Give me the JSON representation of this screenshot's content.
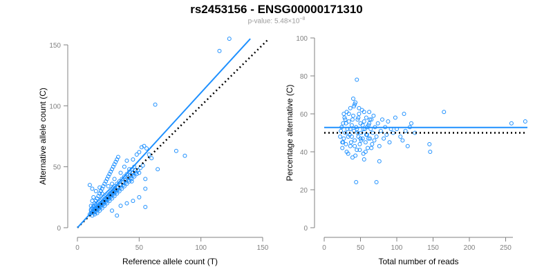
{
  "title": "rs2453156 - ENSG00000171310",
  "subtitle": {
    "prefix": "p-value: 5.48×10",
    "exponent": "−8"
  },
  "colors": {
    "points": "#1e90ff",
    "fit": "#1e90ff",
    "reference": "#000000",
    "axis": "#808080",
    "title": "#000000",
    "subtitle": "#9a9a9a"
  },
  "chart_data": [
    {
      "type": "scatter",
      "title": "",
      "xlabel": "Reference allele count (T)",
      "ylabel": "Alternative allele count (C)",
      "xlim": [
        0,
        150
      ],
      "ylim": [
        0,
        150
      ],
      "xticks": [
        0,
        50,
        100,
        150
      ],
      "yticks": [
        0,
        50,
        100,
        150
      ],
      "grid": false,
      "fit_line": {
        "x": [
          0,
          140
        ],
        "y": [
          0,
          155
        ]
      },
      "reference_line": {
        "x": [
          0,
          155
        ],
        "y": [
          0,
          155
        ]
      },
      "points": [
        [
          12,
          10
        ],
        [
          13,
          12
        ],
        [
          14,
          11
        ],
        [
          11,
          14
        ],
        [
          15,
          15
        ],
        [
          12,
          16
        ],
        [
          16,
          12
        ],
        [
          13,
          18
        ],
        [
          17,
          17
        ],
        [
          14,
          20
        ],
        [
          18,
          14
        ],
        [
          19,
          19
        ],
        [
          20,
          16
        ],
        [
          15,
          22
        ],
        [
          21,
          21
        ],
        [
          22,
          18
        ],
        [
          16,
          24
        ],
        [
          23,
          23
        ],
        [
          24,
          20
        ],
        [
          17,
          26
        ],
        [
          25,
          25
        ],
        [
          26,
          22
        ],
        [
          18,
          28
        ],
        [
          27,
          27
        ],
        [
          28,
          24
        ],
        [
          19,
          30
        ],
        [
          29,
          29
        ],
        [
          30,
          26
        ],
        [
          20,
          32
        ],
        [
          31,
          31
        ],
        [
          32,
          28
        ],
        [
          21,
          34
        ],
        [
          33,
          33
        ],
        [
          34,
          30
        ],
        [
          22,
          36
        ],
        [
          35,
          35
        ],
        [
          23,
          38
        ],
        [
          36,
          32
        ],
        [
          37,
          37
        ],
        [
          24,
          40
        ],
        [
          38,
          34
        ],
        [
          25,
          42
        ],
        [
          39,
          39
        ],
        [
          40,
          36
        ],
        [
          26,
          44
        ],
        [
          41,
          41
        ],
        [
          27,
          46
        ],
        [
          42,
          38
        ],
        [
          43,
          43
        ],
        [
          28,
          48
        ],
        [
          44,
          40
        ],
        [
          29,
          50
        ],
        [
          45,
          45
        ],
        [
          30,
          52
        ],
        [
          46,
          42
        ],
        [
          31,
          54
        ],
        [
          47,
          47
        ],
        [
          32,
          56
        ],
        [
          48,
          44
        ],
        [
          33,
          58
        ],
        [
          11,
          18
        ],
        [
          12,
          22
        ],
        [
          13,
          25
        ],
        [
          14,
          16
        ],
        [
          16,
          20
        ],
        [
          18,
          22
        ],
        [
          20,
          24
        ],
        [
          22,
          26
        ],
        [
          24,
          28
        ],
        [
          26,
          30
        ],
        [
          28,
          32
        ],
        [
          30,
          34
        ],
        [
          32,
          36
        ],
        [
          34,
          38
        ],
        [
          36,
          40
        ],
        [
          38,
          42
        ],
        [
          40,
          44
        ],
        [
          42,
          46
        ],
        [
          44,
          48
        ],
        [
          46,
          50
        ],
        [
          15,
          13
        ],
        [
          17,
          15
        ],
        [
          19,
          17
        ],
        [
          21,
          19
        ],
        [
          23,
          21
        ],
        [
          25,
          23
        ],
        [
          27,
          25
        ],
        [
          29,
          27
        ],
        [
          31,
          29
        ],
        [
          33,
          31
        ],
        [
          35,
          33
        ],
        [
          37,
          35
        ],
        [
          39,
          37
        ],
        [
          41,
          39
        ],
        [
          43,
          41
        ],
        [
          45,
          43
        ],
        [
          47,
          45
        ],
        [
          49,
          47
        ],
        [
          51,
          49
        ],
        [
          53,
          51
        ],
        [
          10,
          11
        ],
        [
          11,
          12
        ],
        [
          12,
          13
        ],
        [
          13,
          14
        ],
        [
          14,
          15
        ],
        [
          15,
          16
        ],
        [
          16,
          17
        ],
        [
          17,
          18
        ],
        [
          18,
          19
        ],
        [
          19,
          20
        ],
        [
          20,
          21
        ],
        [
          21,
          22
        ],
        [
          22,
          23
        ],
        [
          23,
          24
        ],
        [
          24,
          25
        ],
        [
          25,
          26
        ],
        [
          26,
          27
        ],
        [
          27,
          28
        ],
        [
          28,
          29
        ],
        [
          29,
          30
        ],
        [
          11,
          15
        ],
        [
          13,
          17
        ],
        [
          15,
          19
        ],
        [
          17,
          21
        ],
        [
          19,
          23
        ],
        [
          21,
          25
        ],
        [
          23,
          27
        ],
        [
          25,
          29
        ],
        [
          27,
          31
        ],
        [
          29,
          33
        ],
        [
          14,
          13
        ],
        [
          16,
          15
        ],
        [
          18,
          17
        ],
        [
          20,
          19
        ],
        [
          22,
          21
        ],
        [
          24,
          23
        ],
        [
          26,
          25
        ],
        [
          28,
          27
        ],
        [
          30,
          29
        ],
        [
          32,
          31
        ],
        [
          10,
          35
        ],
        [
          12,
          32
        ],
        [
          15,
          30
        ],
        [
          18,
          33
        ],
        [
          20,
          28
        ],
        [
          25,
          34
        ],
        [
          28,
          36
        ],
        [
          30,
          40
        ],
        [
          35,
          45
        ],
        [
          38,
          50
        ],
        [
          40,
          55
        ],
        [
          42,
          48
        ],
        [
          45,
          56
        ],
        [
          48,
          60
        ],
        [
          50,
          62
        ],
        [
          52,
          66
        ],
        [
          54,
          67
        ],
        [
          56,
          65
        ],
        [
          58,
          60
        ],
        [
          60,
          57
        ],
        [
          35,
          18
        ],
        [
          40,
          20
        ],
        [
          45,
          22
        ],
        [
          50,
          25
        ],
        [
          55,
          17
        ],
        [
          32,
          10
        ],
        [
          28,
          14
        ],
        [
          44,
          38
        ],
        [
          50,
          45
        ],
        [
          55,
          40
        ],
        [
          63,
          101
        ],
        [
          80,
          63
        ],
        [
          87,
          59
        ],
        [
          65,
          48
        ],
        [
          115,
          145
        ],
        [
          123,
          155
        ],
        [
          55,
          32
        ]
      ]
    },
    {
      "type": "scatter",
      "title": "",
      "xlabel": "Total number of reads",
      "ylabel": "Percentage alternative (C)",
      "xlim": [
        0,
        260
      ],
      "ylim": [
        0,
        100
      ],
      "xticks": [
        0,
        50,
        100,
        150,
        200,
        250
      ],
      "yticks": [
        0,
        20,
        40,
        60,
        80,
        100
      ],
      "grid": false,
      "fit_line": {
        "x": [
          0,
          280
        ],
        "y": [
          52.8,
          52.8
        ]
      },
      "reference_line": {
        "x": [
          0,
          280
        ],
        "y": [
          50,
          50
        ]
      },
      "points": [
        [
          22,
          48
        ],
        [
          24,
          53
        ],
        [
          25,
          42
        ],
        [
          26,
          55
        ],
        [
          27,
          47
        ],
        [
          28,
          58
        ],
        [
          29,
          50
        ],
        [
          30,
          44
        ],
        [
          31,
          61
        ],
        [
          32,
          52
        ],
        [
          33,
          39
        ],
        [
          34,
          56
        ],
        [
          35,
          49
        ],
        [
          36,
          63
        ],
        [
          37,
          45
        ],
        [
          38,
          54
        ],
        [
          39,
          37
        ],
        [
          40,
          59
        ],
        [
          41,
          51
        ],
        [
          42,
          46
        ],
        [
          43,
          66
        ],
        [
          44,
          53
        ],
        [
          45,
          41
        ],
        [
          46,
          57
        ],
        [
          47,
          48
        ],
        [
          48,
          60
        ],
        [
          49,
          44
        ],
        [
          50,
          55
        ],
        [
          51,
          50
        ],
        [
          52,
          62
        ],
        [
          53,
          47
        ],
        [
          54,
          39
        ],
        [
          55,
          56
        ],
        [
          56,
          52
        ],
        [
          57,
          45
        ],
        [
          58,
          58
        ],
        [
          59,
          49
        ],
        [
          60,
          42
        ],
        [
          61,
          54
        ],
        [
          62,
          61
        ],
        [
          63,
          47
        ],
        [
          64,
          52
        ],
        [
          65,
          57
        ],
        [
          66,
          44
        ],
        [
          67,
          50
        ],
        [
          68,
          59
        ],
        [
          69,
          46
        ],
        [
          70,
          53
        ],
        [
          72,
          48
        ],
        [
          74,
          55
        ],
        [
          76,
          43
        ],
        [
          78,
          51
        ],
        [
          80,
          57
        ],
        [
          82,
          47
        ],
        [
          84,
          53
        ],
        [
          86,
          49
        ],
        [
          88,
          56
        ],
        [
          90,
          45
        ],
        [
          92,
          52
        ],
        [
          95,
          50
        ],
        [
          23,
          51
        ],
        [
          26,
          45
        ],
        [
          29,
          57
        ],
        [
          31,
          40
        ],
        [
          34,
          60
        ],
        [
          36,
          43
        ],
        [
          38,
          48
        ],
        [
          41,
          64
        ],
        [
          43,
          38
        ],
        [
          45,
          52
        ],
        [
          47,
          58
        ],
        [
          49,
          41
        ],
        [
          51,
          46
        ],
        [
          53,
          54
        ],
        [
          55,
          61
        ],
        [
          57,
          40
        ],
        [
          59,
          53
        ],
        [
          61,
          47
        ],
        [
          63,
          57
        ],
        [
          65,
          42
        ],
        [
          44,
          24
        ],
        [
          45,
          78
        ],
        [
          72,
          24
        ],
        [
          76,
          35
        ],
        [
          40,
          68
        ],
        [
          42,
          65
        ],
        [
          48,
          63
        ],
        [
          55,
          36
        ],
        [
          25,
          45
        ],
        [
          27,
          60
        ],
        [
          30,
          55
        ],
        [
          33,
          48
        ],
        [
          36,
          52
        ],
        [
          39,
          57
        ],
        [
          42,
          43
        ],
        [
          46,
          50
        ],
        [
          50,
          47
        ],
        [
          54,
          52
        ],
        [
          58,
          49
        ],
        [
          62,
          55
        ],
        [
          100,
          52
        ],
        [
          105,
          48
        ],
        [
          110,
          60
        ],
        [
          115,
          43
        ],
        [
          120,
          55
        ],
        [
          125,
          50
        ],
        [
          145,
          44
        ],
        [
          146,
          40
        ],
        [
          165,
          61
        ],
        [
          258,
          55
        ],
        [
          277,
          56
        ],
        [
          118,
          53
        ],
        [
          98,
          58
        ],
        [
          108,
          46
        ],
        [
          112,
          51
        ]
      ]
    }
  ]
}
